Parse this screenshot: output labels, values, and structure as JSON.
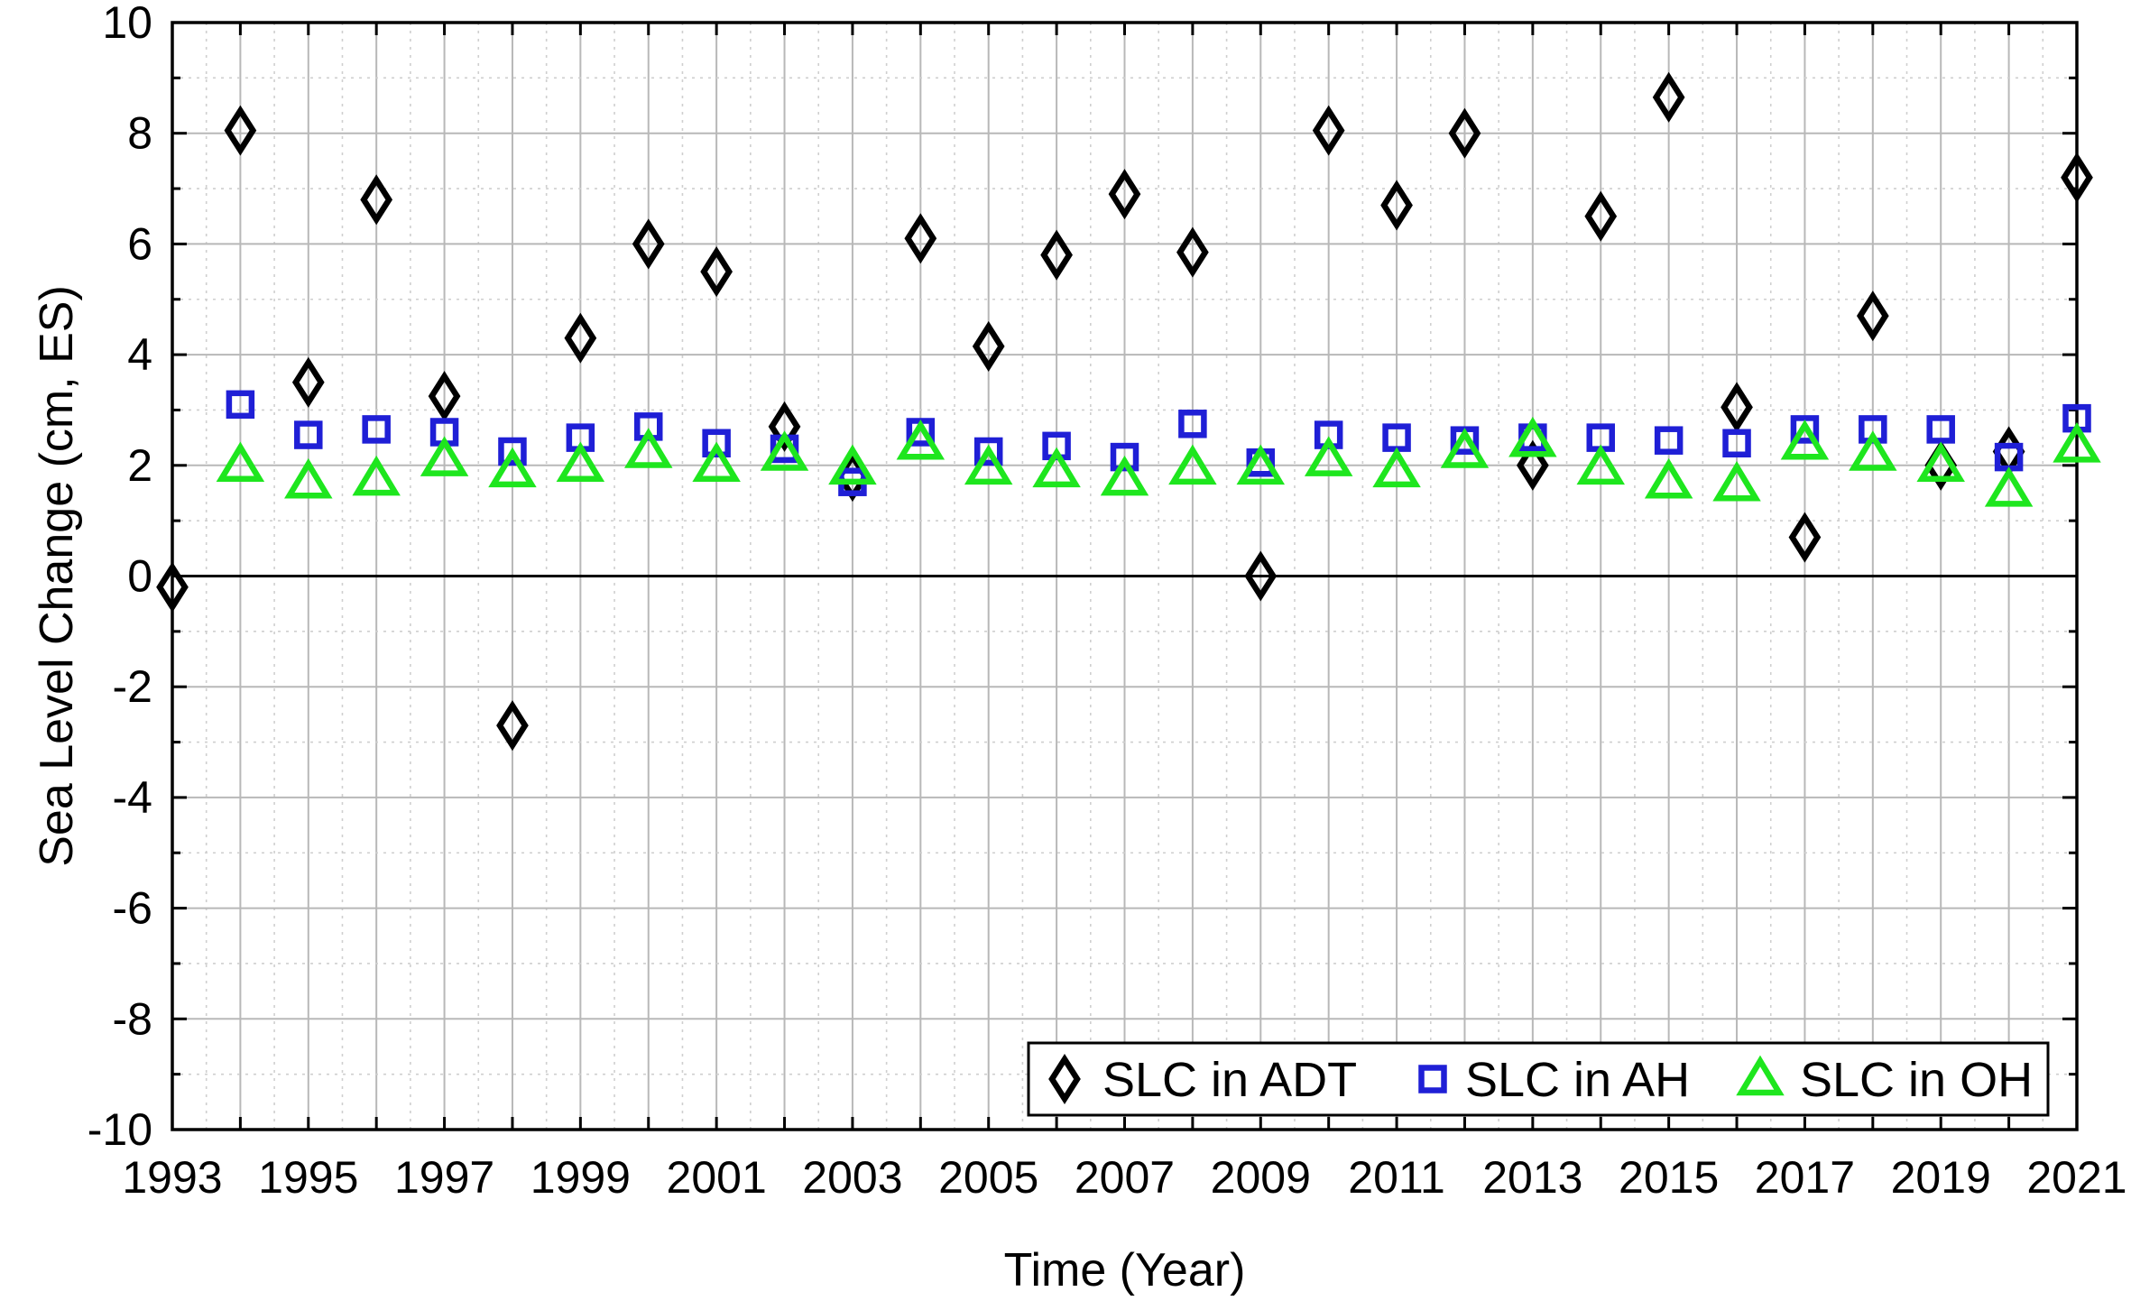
{
  "chart_data": {
    "type": "scatter",
    "title": "",
    "xlabel": "Time (Year)",
    "ylabel": "Sea Level Change (cm, ES)",
    "xlim": [
      1993,
      2021
    ],
    "ylim": [
      -10,
      10
    ],
    "x_ticks": [
      1993,
      1995,
      1997,
      1999,
      2001,
      2003,
      2005,
      2007,
      2009,
      2011,
      2013,
      2015,
      2017,
      2019,
      2021
    ],
    "y_ticks": [
      -10,
      -8,
      -6,
      -4,
      -2,
      0,
      2,
      4,
      6,
      8,
      10
    ],
    "grid": "on (major and minor)",
    "zero_line": true,
    "legend": {
      "placement": "bottom-right",
      "orientation": "horizontal"
    },
    "x": [
      1993,
      1994,
      1995,
      1996,
      1997,
      1998,
      1999,
      2000,
      2001,
      2002,
      2003,
      2004,
      2005,
      2006,
      2007,
      2008,
      2009,
      2010,
      2011,
      2012,
      2013,
      2014,
      2015,
      2016,
      2017,
      2018,
      2019,
      2020,
      2021
    ],
    "series": [
      {
        "name": "SLC in ADT",
        "marker": "diamond",
        "color": "#000000",
        "values": [
          -0.2,
          8.05,
          3.5,
          6.8,
          3.25,
          -2.7,
          4.3,
          6.0,
          5.5,
          2.7,
          1.8,
          6.1,
          4.15,
          5.8,
          6.9,
          5.85,
          0.0,
          8.05,
          6.7,
          8.0,
          2.0,
          6.5,
          8.65,
          3.05,
          0.7,
          4.7,
          2.0,
          2.25,
          7.2
        ]
      },
      {
        "name": "SLC in AH",
        "marker": "square",
        "color": "#1f1fd6",
        "values": [
          null,
          3.1,
          2.55,
          2.65,
          2.6,
          2.25,
          2.5,
          2.7,
          2.4,
          2.3,
          1.7,
          2.6,
          2.25,
          2.35,
          2.15,
          2.75,
          2.05,
          2.55,
          2.5,
          2.45,
          2.5,
          2.5,
          2.45,
          2.4,
          2.65,
          2.65,
          2.65,
          2.15,
          2.85
        ]
      },
      {
        "name": "SLC in OH",
        "marker": "triangle",
        "color": "#1ee61e",
        "values": [
          null,
          2.0,
          1.7,
          1.75,
          2.1,
          1.9,
          2.0,
          2.25,
          2.0,
          2.2,
          1.95,
          2.4,
          1.95,
          1.9,
          1.75,
          1.95,
          1.95,
          2.1,
          1.9,
          2.25,
          2.45,
          1.95,
          1.7,
          1.65,
          2.4,
          2.2,
          2.0,
          1.55,
          2.35
        ]
      }
    ]
  }
}
